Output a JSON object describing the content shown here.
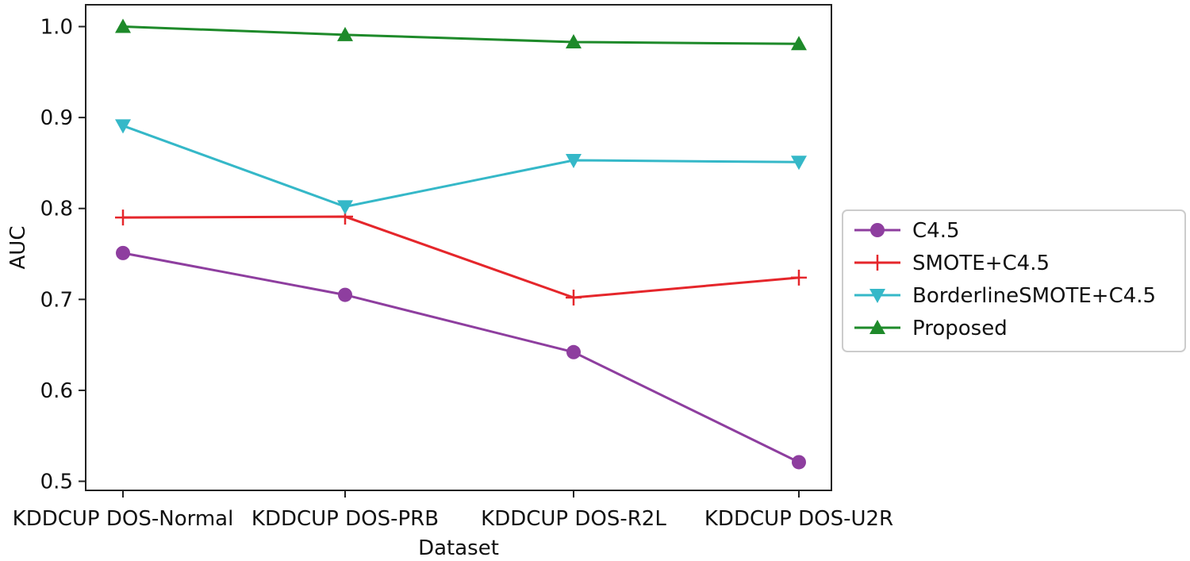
{
  "chart_data": {
    "type": "line",
    "xlabel": "Dataset",
    "ylabel": "AUC",
    "categories": [
      "KDDCUP DOS-Normal",
      "KDDCUP DOS-PRB",
      "KDDCUP DOS-R2L",
      "KDDCUP DOS-U2R"
    ],
    "y_ticks": [
      "0.5",
      "0.6",
      "0.7",
      "0.8",
      "0.9",
      "1.0"
    ],
    "ylim": [
      0.49,
      1.024
    ],
    "grid": false,
    "legend_position": "outside right",
    "series": [
      {
        "name": "C4.5",
        "values": [
          0.751,
          0.705,
          0.642,
          0.521
        ],
        "color": "#8e3e9f",
        "marker": "circle"
      },
      {
        "name": "SMOTE+C4.5",
        "values": [
          0.79,
          0.791,
          0.702,
          0.724
        ],
        "color": "#e5262b",
        "marker": "plus"
      },
      {
        "name": "BorderlineSMOTE+C4.5",
        "values": [
          0.891,
          0.802,
          0.853,
          0.851
        ],
        "color": "#35b8c8",
        "marker": "triangle-down"
      },
      {
        "name": "Proposed",
        "values": [
          1.0,
          0.991,
          0.983,
          0.981
        ],
        "color": "#1e8a2a",
        "marker": "triangle-up"
      }
    ]
  }
}
